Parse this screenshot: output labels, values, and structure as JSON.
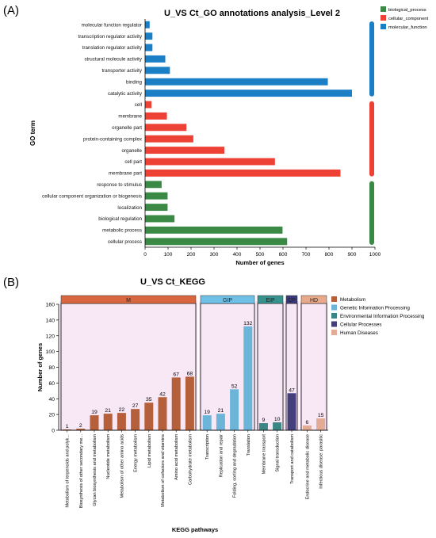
{
  "panel_a_label": "(A)",
  "panel_b_label": "(B)",
  "colors": {
    "biological_process": "#3a8a45",
    "cellular_component": "#ee4136",
    "molecular_function": "#1b7fc6",
    "Metabolism": "#b5603a",
    "Genetic Information Processing": "#6cb5d8",
    "Environmental Information Processing": "#3c8585",
    "Cellular Processes": "#423f7a",
    "Human Diseases": "#e2ab94",
    "band_M": "#d9663e",
    "band_GIP": "#6fc0e6",
    "band_EIP": "#37918d",
    "band_CP": "#3a3a7a",
    "band_HD": "#e8a98b",
    "bg_pink": "#f6dff2"
  },
  "chart_data": [
    {
      "type": "bar",
      "orientation": "horizontal",
      "title": "U_VS  Ct_GO annotations analysis_Level 2",
      "xlabel": "Number of genes",
      "ylabel": "GO term",
      "xlim": [
        0,
        1000
      ],
      "xticks": [
        "0",
        "100",
        "200",
        "300",
        "400",
        "500",
        "600",
        "700",
        "800",
        "900",
        "1000"
      ],
      "legend": {
        "position": "top-right",
        "entries": [
          "biological_process",
          "cellular_component",
          "molecular_function"
        ]
      },
      "categories": [
        "molecular function regulator",
        "transcription regulator activity",
        "translation regulator activity",
        "structural molecule activity",
        "transporter activity",
        "binding",
        "catalytic activity",
        "cell",
        "membrane",
        "organelle part",
        "protein-containing complex",
        "organelle",
        "cell part",
        "membrane part",
        "response to stimulus",
        "cellular component organization or biogenesis",
        "localization",
        "biological regulation",
        "metabolic process",
        "cellular process"
      ],
      "values": [
        20,
        32,
        32,
        88,
        108,
        795,
        900,
        28,
        95,
        180,
        210,
        345,
        565,
        850,
        72,
        98,
        98,
        128,
        598,
        618
      ],
      "groups": [
        "molecular_function",
        "molecular_function",
        "molecular_function",
        "molecular_function",
        "molecular_function",
        "molecular_function",
        "molecular_function",
        "cellular_component",
        "cellular_component",
        "cellular_component",
        "cellular_component",
        "cellular_component",
        "cellular_component",
        "cellular_component",
        "biological_process",
        "biological_process",
        "biological_process",
        "biological_process",
        "biological_process",
        "biological_process"
      ]
    },
    {
      "type": "bar",
      "title": "U_VS Ct_KEGG",
      "xlabel": "KEGG pathways",
      "ylabel": "Number of genes",
      "ylim": [
        0,
        160
      ],
      "yticks": [
        "0",
        "20",
        "40",
        "60",
        "80",
        "100",
        "120",
        "140",
        "160"
      ],
      "legend": {
        "position": "top-right",
        "entries": [
          "Metabolism",
          "Genetic Information Processing",
          "Environmental Information Processing",
          "Cellular Processes",
          "Human Diseases"
        ]
      },
      "band_groups": [
        {
          "code": "M",
          "count": 10
        },
        {
          "code": "GIP",
          "count": 4
        },
        {
          "code": "EIP",
          "count": 2
        },
        {
          "code": "CP",
          "count": 1
        },
        {
          "code": "HD",
          "count": 2
        }
      ],
      "categories": [
        "Metabolism of terpenoids and polyk...",
        "Biosynthesis of other secondary me...",
        "Glycan biosynthesis and metabolism",
        "Nucleotide metabolism",
        "Metabolism of other amino acids",
        "Energy metabolism",
        "Lipid metabolism",
        "Metabolism of cofactors and vitamins",
        "Amino acid metabolism",
        "Carbohydrate metabolism",
        "Transcription",
        "Replication and repair",
        "Folding, sorting and degradation",
        "Translation",
        "Membrane transport",
        "Signal transduction",
        "Transport and catabolism",
        "Endocrine and metabolic disease",
        "Infectious disease: parasitic"
      ],
      "values": [
        1,
        2,
        19,
        21,
        22,
        27,
        35,
        42,
        67,
        68,
        19,
        21,
        52,
        132,
        9,
        10,
        47,
        6,
        15
      ],
      "value_labels": [
        "1",
        "2",
        "19",
        "21",
        "22",
        "27",
        "35",
        "42",
        "67",
        "68",
        "19",
        "21",
        "52",
        "132",
        "9",
        "10",
        "47",
        "6",
        "15"
      ],
      "groups": [
        "Metabolism",
        "Metabolism",
        "Metabolism",
        "Metabolism",
        "Metabolism",
        "Metabolism",
        "Metabolism",
        "Metabolism",
        "Metabolism",
        "Metabolism",
        "Genetic Information Processing",
        "Genetic Information Processing",
        "Genetic Information Processing",
        "Genetic Information Processing",
        "Environmental Information Processing",
        "Environmental Information Processing",
        "Cellular Processes",
        "Human Diseases",
        "Human Diseases"
      ]
    }
  ]
}
